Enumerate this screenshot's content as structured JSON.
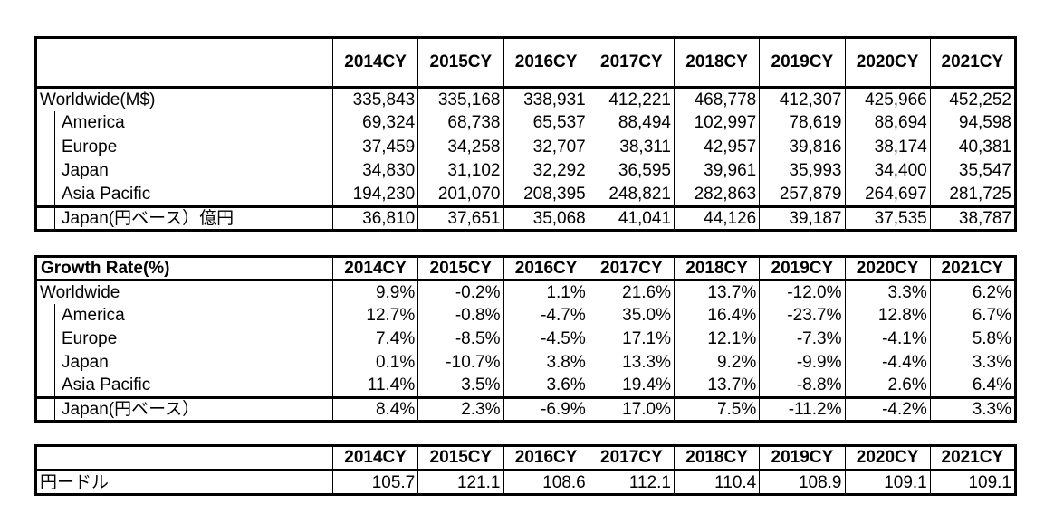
{
  "years": [
    "2014CY",
    "2015CY",
    "2016CY",
    "2017CY",
    "2018CY",
    "2019CY",
    "2020CY",
    "2021CY"
  ],
  "sales": {
    "header_label": "",
    "rows": [
      {
        "label": "Worldwide(M$)",
        "indent": false,
        "values": [
          "335,843",
          "335,168",
          "338,931",
          "412,221",
          "468,778",
          "412,307",
          "425,966",
          "452,252"
        ]
      },
      {
        "label": "America",
        "indent": true,
        "values": [
          "69,324",
          "68,738",
          "65,537",
          "88,494",
          "102,997",
          "78,619",
          "88,694",
          "94,598"
        ]
      },
      {
        "label": "Europe",
        "indent": true,
        "values": [
          "37,459",
          "34,258",
          "32,707",
          "38,311",
          "42,957",
          "39,816",
          "38,174",
          "40,381"
        ]
      },
      {
        "label": "Japan",
        "indent": true,
        "values": [
          "34,830",
          "31,102",
          "32,292",
          "36,595",
          "39,961",
          "35,993",
          "34,400",
          "35,547"
        ]
      },
      {
        "label": "Asia Pacific",
        "indent": true,
        "values": [
          "194,230",
          "201,070",
          "208,395",
          "248,821",
          "282,863",
          "257,879",
          "264,697",
          "281,725"
        ]
      },
      {
        "label": "Japan(円ベース）億円",
        "indent": true,
        "values": [
          "36,810",
          "37,651",
          "35,068",
          "41,041",
          "44,126",
          "39,187",
          "37,535",
          "38,787"
        ]
      }
    ]
  },
  "growth": {
    "header_label": "Growth Rate(%)",
    "rows": [
      {
        "label": "Worldwide",
        "indent": false,
        "values": [
          "9.9%",
          "-0.2%",
          "1.1%",
          "21.6%",
          "13.7%",
          "-12.0%",
          "3.3%",
          "6.2%"
        ]
      },
      {
        "label": "America",
        "indent": true,
        "values": [
          "12.7%",
          "-0.8%",
          "-4.7%",
          "35.0%",
          "16.4%",
          "-23.7%",
          "12.8%",
          "6.7%"
        ]
      },
      {
        "label": "Europe",
        "indent": true,
        "values": [
          "7.4%",
          "-8.5%",
          "-4.5%",
          "17.1%",
          "12.1%",
          "-7.3%",
          "-4.1%",
          "5.8%"
        ]
      },
      {
        "label": "Japan",
        "indent": true,
        "values": [
          "0.1%",
          "-10.7%",
          "3.8%",
          "13.3%",
          "9.2%",
          "-9.9%",
          "-4.4%",
          "3.3%"
        ]
      },
      {
        "label": "Asia Pacific",
        "indent": true,
        "values": [
          "11.4%",
          "3.5%",
          "3.6%",
          "19.4%",
          "13.7%",
          "-8.8%",
          "2.6%",
          "6.4%"
        ]
      },
      {
        "label": "Japan(円ベース）",
        "indent": true,
        "values": [
          "8.4%",
          "2.3%",
          "-6.9%",
          "17.0%",
          "7.5%",
          "-11.2%",
          "-4.2%",
          "3.3%"
        ]
      }
    ]
  },
  "fx": {
    "header_label": "",
    "rows": [
      {
        "label": "円ードル",
        "indent": false,
        "values": [
          "105.7",
          "121.1",
          "108.6",
          "112.1",
          "110.4",
          "108.9",
          "109.1",
          "109.1"
        ]
      }
    ]
  }
}
